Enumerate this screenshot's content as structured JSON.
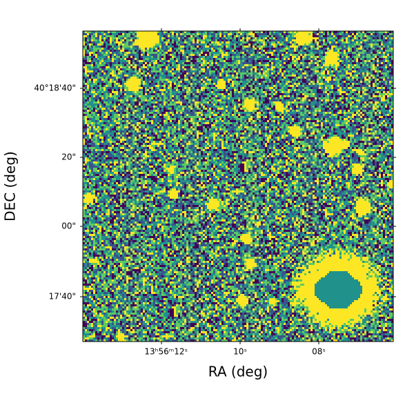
{
  "axes": {
    "xlabel": "RA (deg)",
    "ylabel": "DEC (deg)",
    "xticks": [
      "13ʰ56ᵐ12ˢ",
      "10ˢ",
      "08ˢ"
    ],
    "yticks": [
      "40°18'40\"",
      "20\"",
      "00\"",
      "17'40\""
    ]
  }
}
